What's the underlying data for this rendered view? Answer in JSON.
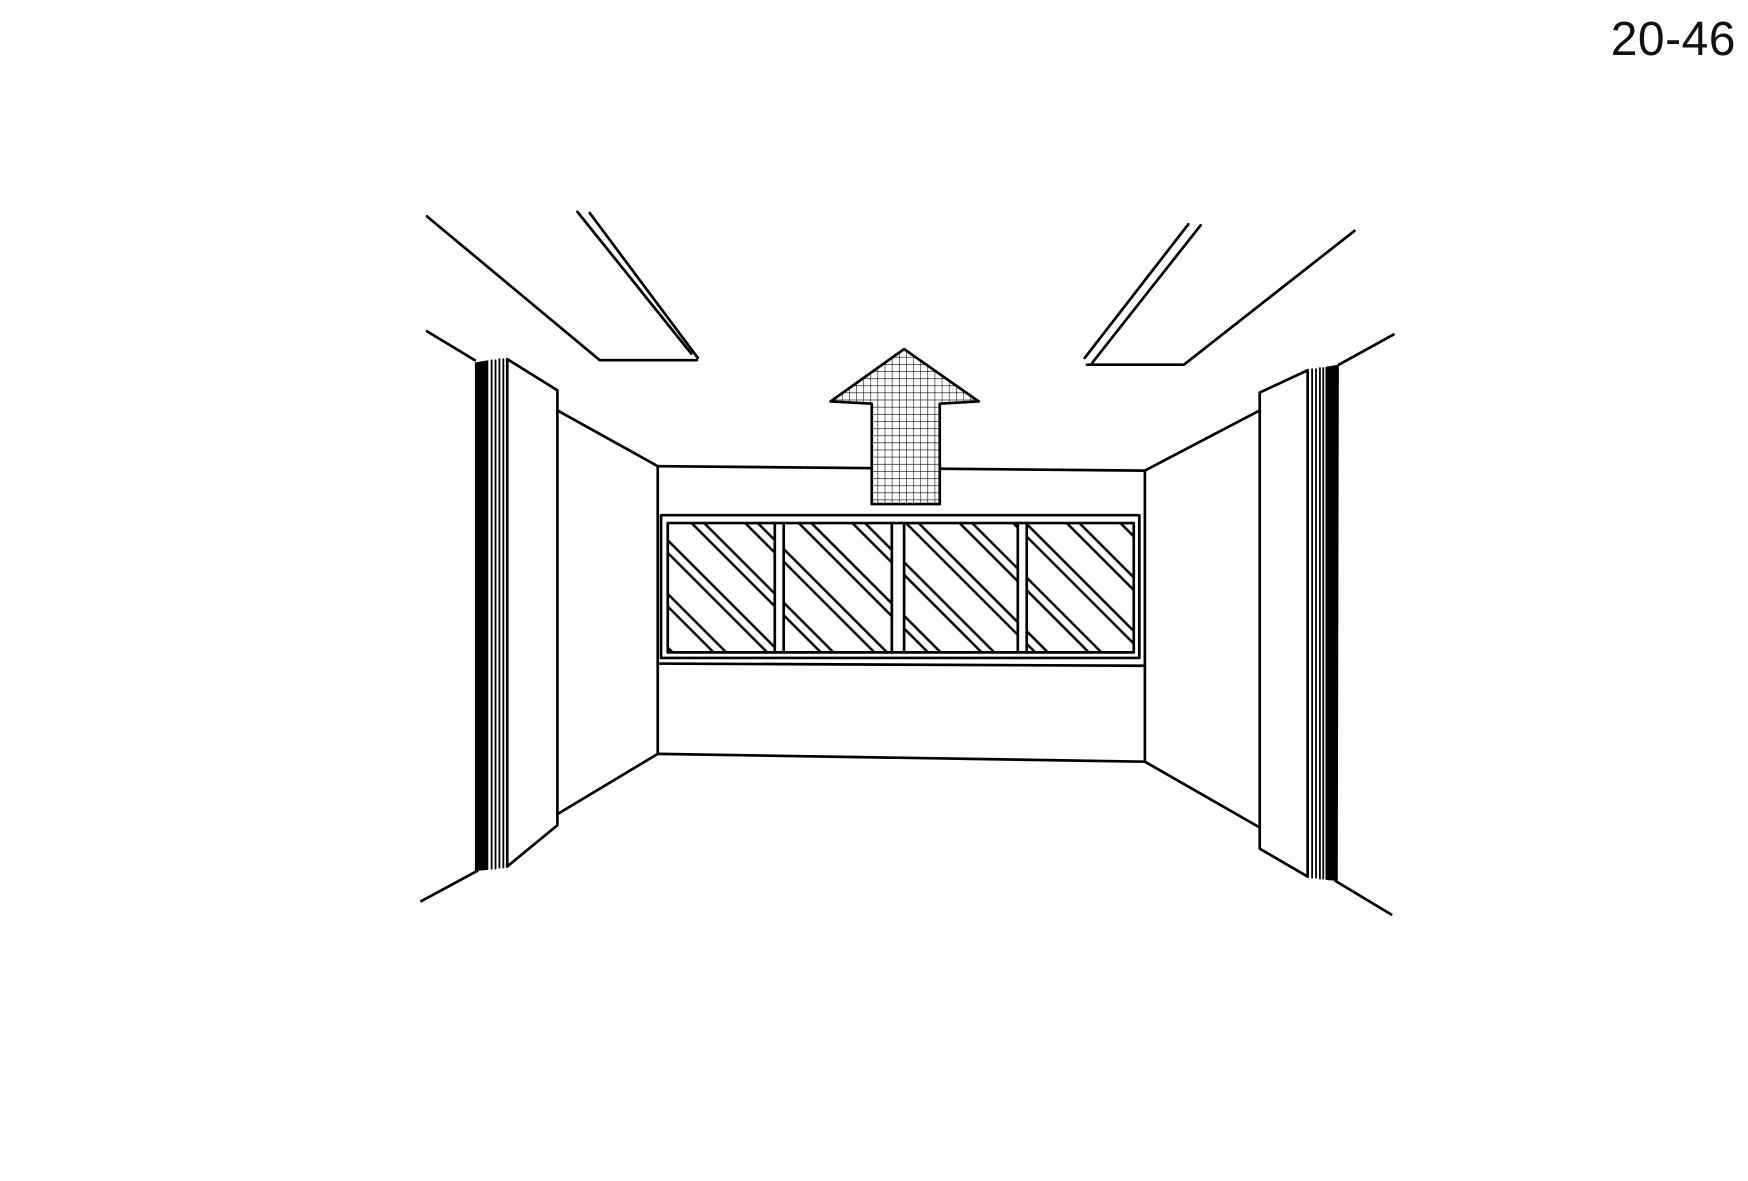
{
  "page_number": "20-46",
  "colors": {
    "ink": "#000000",
    "paper": "#ffffff"
  }
}
